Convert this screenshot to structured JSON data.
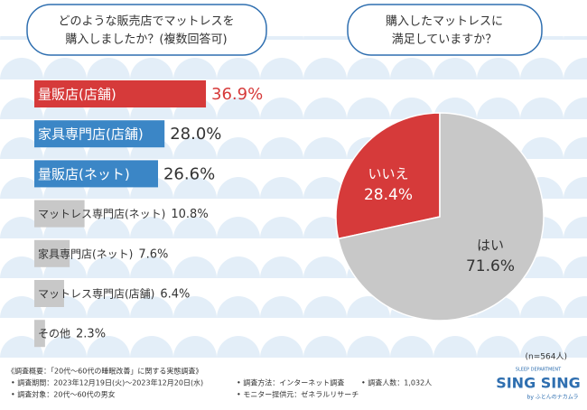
{
  "chart_data": [
    {
      "type": "bar",
      "title": [
        "どのような販売店でマットレスを",
        "購入しましたか？(複数回答可)"
      ],
      "categories": [
        "量販店(店舗)",
        "家具専門店(店舗)",
        "量販店(ネット)",
        "マットレス専門店(ネット)",
        "家具専門店(ネット)",
        "マットレス専門店(店舗)",
        "その他"
      ],
      "values": [
        36.9,
        28.0,
        26.6,
        10.8,
        7.6,
        6.4,
        2.3
      ],
      "value_labels": [
        "36.9%",
        "28.0%",
        "26.6%",
        "10.8%",
        "7.6%",
        "6.4%",
        "2.3%"
      ],
      "colors": [
        "#d63a3a",
        "#3b86c6",
        "#3b86c6",
        "#c8c8c8",
        "#c8c8c8",
        "#c8c8c8",
        "#c8c8c8"
      ]
    },
    {
      "type": "pie",
      "title": [
        "購入したマットレスに",
        "満足していますか？"
      ],
      "categories": [
        "いいえ",
        "はい"
      ],
      "values": [
        28.4,
        71.6
      ],
      "value_labels": [
        "28.4%",
        "71.6%"
      ],
      "colors": [
        "#d63a3a",
        "#c8c8c8"
      ],
      "note": "(n=564人)"
    }
  ],
  "footer": {
    "heading": "《調査概要：「20代～60代の睡眠改善」に関する実態調査》",
    "items": [
      "• 調査期間：2023年12月19日(火)～2023年12月20日(水)",
      "• 調査対象：20代～60代の男女",
      "• 調査方法：インターネット調査",
      "• モニター提供元：ゼネラルリサーチ",
      "• 調査人数：1,032人"
    ],
    "logo": {
      "top": "SLEEP DEPARTMENT",
      "name": "SING SING",
      "sub": "by ふとんのナカムラ"
    }
  }
}
